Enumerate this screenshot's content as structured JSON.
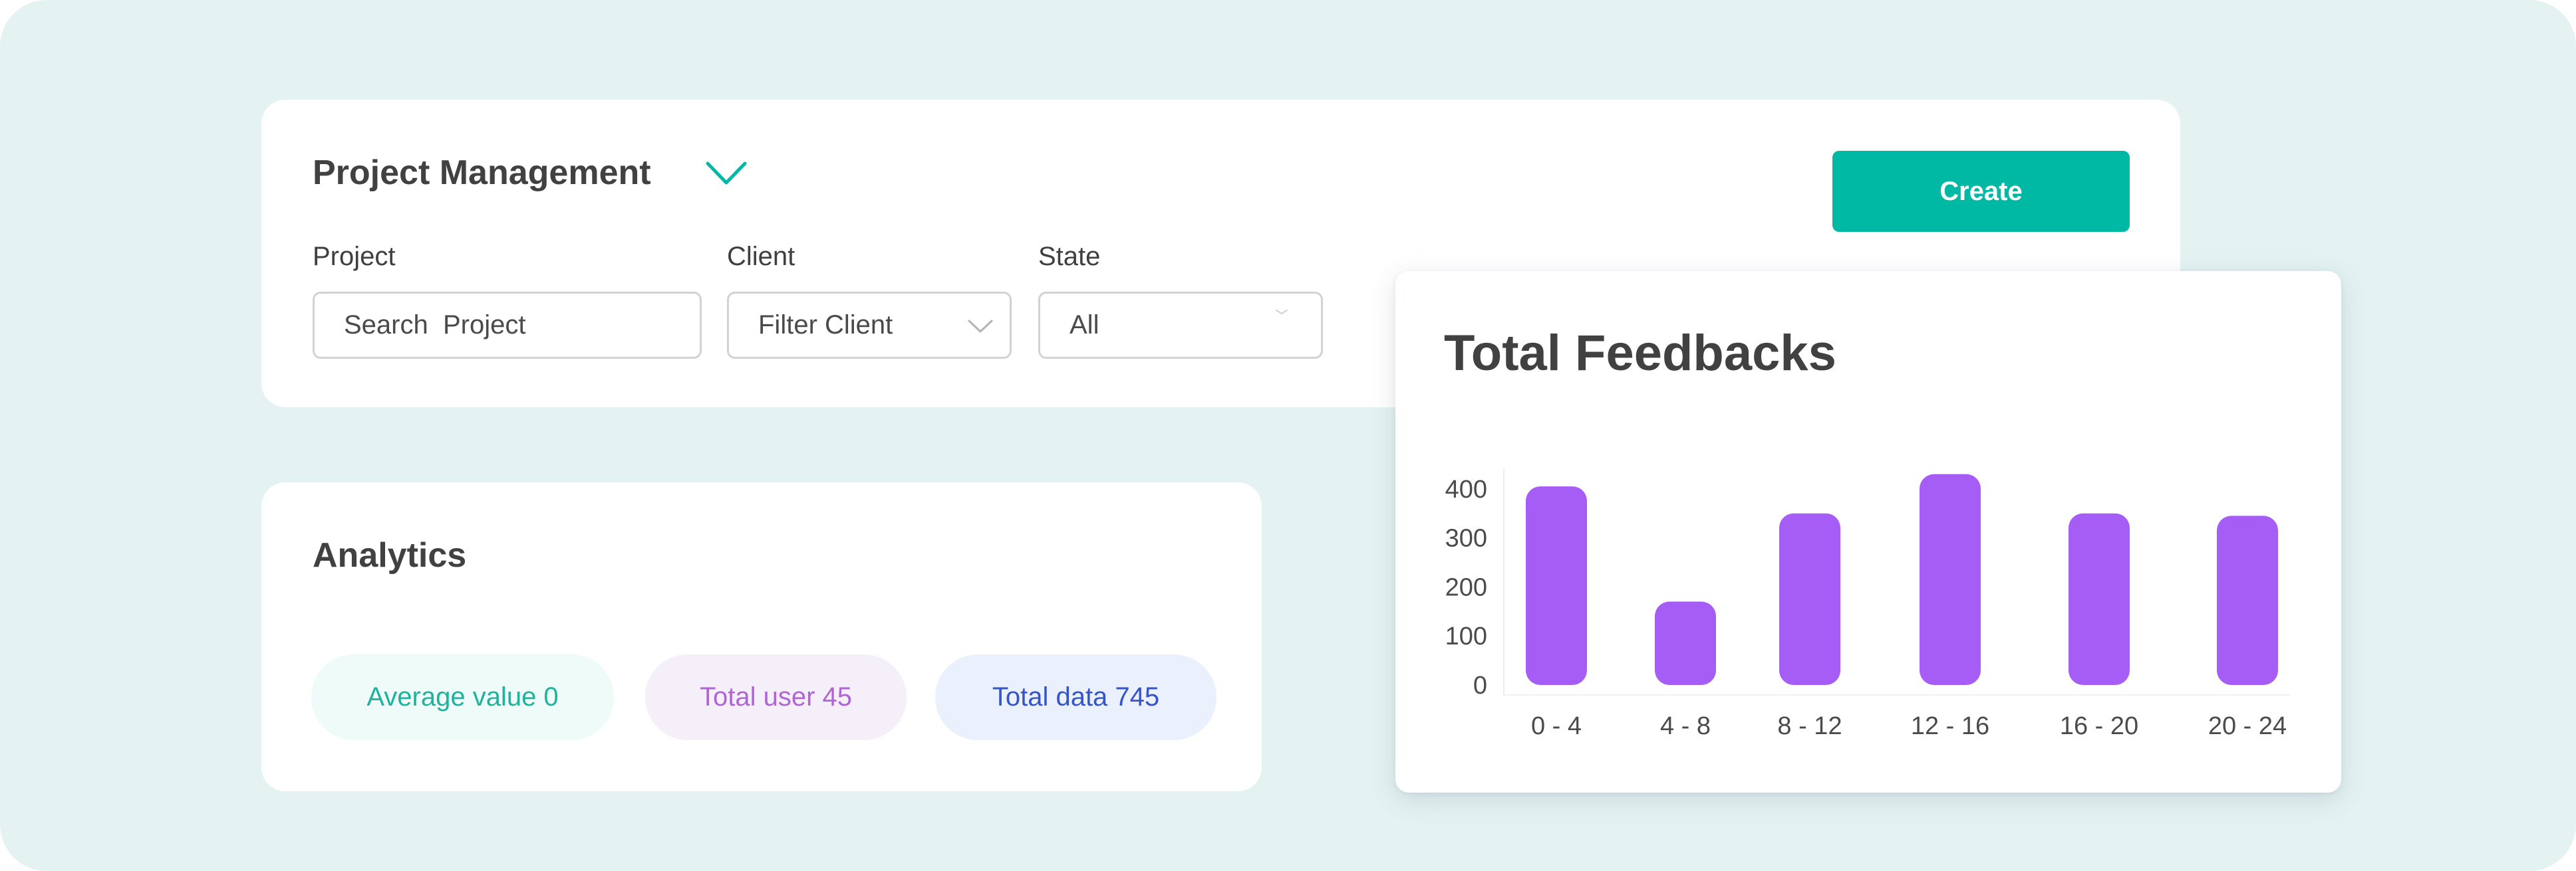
{
  "project_management": {
    "title": "Project Management",
    "create_label": "Create",
    "fields": {
      "project": {
        "label": "Project",
        "placeholder": "Search  Project"
      },
      "client": {
        "label": "Client",
        "value": "Filter Client"
      },
      "state": {
        "label": "State",
        "value": "All"
      }
    }
  },
  "analytics": {
    "title": "Analytics",
    "pills": [
      {
        "text": "Average value 0"
      },
      {
        "text": "Total user 45"
      },
      {
        "text": "Total data 745"
      }
    ]
  },
  "colors": {
    "accent": "#00b9a5",
    "bar": "#a65df5",
    "background": "#e4f2f2"
  },
  "chart_data": {
    "type": "bar",
    "title": "Total Feedbacks",
    "categories": [
      "0 - 4",
      "4 - 8",
      "8 - 12",
      "12 - 16",
      "16 - 20",
      "20 - 24"
    ],
    "values": [
      405,
      170,
      350,
      430,
      350,
      345
    ],
    "yticks": [
      0,
      100,
      200,
      300,
      400
    ],
    "ylim": [
      0,
      430
    ],
    "xlabel": "",
    "ylabel": "",
    "grid": false,
    "legend": "none"
  }
}
